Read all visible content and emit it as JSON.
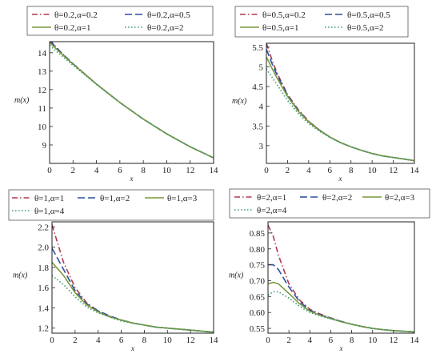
{
  "chart_data": [
    {
      "type": "line",
      "xlabel": "x",
      "ylabel": "m(x)",
      "xlim": [
        0,
        14
      ],
      "ylim": [
        8.0,
        14.6
      ],
      "xticks": [
        "0",
        "2",
        "4",
        "6",
        "8",
        "10",
        "12",
        "14"
      ],
      "yticks": [
        "9",
        "10",
        "11",
        "12",
        "13",
        "14"
      ],
      "ytick_values": [
        9,
        10,
        11,
        12,
        13,
        14
      ],
      "legend_placement": "top",
      "series": [
        {
          "name": "θ=0.2,α=0.2",
          "color": "#b03a4e",
          "dash": "dashdot",
          "x": [
            0,
            1,
            2,
            3,
            4,
            5,
            6,
            7,
            8,
            9,
            10,
            11,
            12,
            13,
            14
          ],
          "y": [
            14.7,
            14.0,
            13.4,
            12.85,
            12.3,
            11.8,
            11.3,
            10.85,
            10.4,
            10.0,
            9.6,
            9.25,
            8.9,
            8.6,
            8.3
          ]
        },
        {
          "name": "θ=0.2,α=0.5",
          "color": "#2d4f9e",
          "dash": "longdash",
          "x": [
            0,
            1,
            2,
            3,
            4,
            5,
            6,
            7,
            8,
            9,
            10,
            11,
            12,
            13,
            14
          ],
          "y": [
            14.65,
            14.0,
            13.4,
            12.85,
            12.3,
            11.8,
            11.3,
            10.85,
            10.4,
            10.0,
            9.6,
            9.25,
            8.9,
            8.6,
            8.3
          ]
        },
        {
          "name": "θ=0.2,α=1",
          "color": "#7a9a3a",
          "dash": "solid",
          "x": [
            0,
            1,
            2,
            3,
            4,
            5,
            6,
            7,
            8,
            9,
            10,
            11,
            12,
            13,
            14
          ],
          "y": [
            14.55,
            13.95,
            13.38,
            12.84,
            12.3,
            11.8,
            11.3,
            10.85,
            10.4,
            10.0,
            9.6,
            9.25,
            8.9,
            8.6,
            8.3
          ]
        },
        {
          "name": "θ=0.2,α=2",
          "color": "#3b9a6e",
          "dash": "dotted",
          "x": [
            0,
            1,
            2,
            3,
            4,
            5,
            6,
            7,
            8,
            9,
            10,
            11,
            12,
            13,
            14
          ],
          "y": [
            14.4,
            13.85,
            13.32,
            12.8,
            12.28,
            11.78,
            11.3,
            10.85,
            10.4,
            10.0,
            9.6,
            9.25,
            8.9,
            8.6,
            8.3
          ]
        }
      ]
    },
    {
      "type": "line",
      "xlabel": "x",
      "ylabel": "m(x)",
      "xlim": [
        0,
        14
      ],
      "ylim": [
        2.55,
        5.6
      ],
      "xticks": [
        "0",
        "2",
        "4",
        "6",
        "8",
        "10",
        "12",
        "14"
      ],
      "yticks": [
        "3",
        "3.5",
        "4",
        "4.5",
        "5",
        "5.5"
      ],
      "ytick_values": [
        3,
        3.5,
        4,
        4.5,
        5,
        5.5
      ],
      "legend_placement": "top",
      "series": [
        {
          "name": "θ=0.5,α=0.2",
          "color": "#b03a4e",
          "dash": "dashdot",
          "x": [
            0,
            0.5,
            1,
            2,
            3,
            4,
            5,
            6,
            7,
            8,
            9,
            10,
            11,
            12,
            13,
            14
          ],
          "y": [
            5.6,
            5.2,
            4.85,
            4.3,
            3.92,
            3.62,
            3.4,
            3.22,
            3.08,
            2.97,
            2.88,
            2.8,
            2.74,
            2.7,
            2.66,
            2.62
          ]
        },
        {
          "name": "θ=0.5,α=0.5",
          "color": "#2d4f9e",
          "dash": "longdash",
          "x": [
            0,
            0.5,
            1,
            2,
            3,
            4,
            5,
            6,
            7,
            8,
            9,
            10,
            11,
            12,
            13,
            14
          ],
          "y": [
            5.45,
            5.1,
            4.8,
            4.28,
            3.9,
            3.61,
            3.4,
            3.22,
            3.08,
            2.97,
            2.88,
            2.8,
            2.74,
            2.7,
            2.66,
            2.62
          ]
        },
        {
          "name": "θ=0.5,α=1",
          "color": "#7a9a3a",
          "dash": "solid",
          "x": [
            0,
            0.5,
            1,
            2,
            3,
            4,
            5,
            6,
            7,
            8,
            9,
            10,
            11,
            12,
            13,
            14
          ],
          "y": [
            5.25,
            4.98,
            4.72,
            4.25,
            3.88,
            3.6,
            3.39,
            3.22,
            3.08,
            2.97,
            2.88,
            2.8,
            2.74,
            2.7,
            2.66,
            2.62
          ]
        },
        {
          "name": "θ=0.5,α=2",
          "color": "#3b9a6e",
          "dash": "dotted",
          "x": [
            0,
            0.5,
            1,
            2,
            3,
            4,
            5,
            6,
            7,
            8,
            9,
            10,
            11,
            12,
            13,
            14
          ],
          "y": [
            4.95,
            4.75,
            4.55,
            4.15,
            3.82,
            3.56,
            3.37,
            3.21,
            3.07,
            2.97,
            2.88,
            2.8,
            2.74,
            2.7,
            2.66,
            2.62
          ]
        }
      ]
    },
    {
      "type": "line",
      "xlabel": "x",
      "ylabel": "m(x)",
      "xlim": [
        0,
        14
      ],
      "ylim": [
        1.15,
        2.25
      ],
      "xticks": [
        "0",
        "2",
        "4",
        "6",
        "8",
        "10",
        "12",
        "14"
      ],
      "yticks": [
        "1.2",
        "1.4",
        "1.6",
        "1.8",
        "2.0",
        "2.2"
      ],
      "ytick_values": [
        1.2,
        1.4,
        1.6,
        1.8,
        2.0,
        2.2
      ],
      "legend_placement": "top",
      "series": [
        {
          "name": "θ=1,α=1",
          "color": "#b03a4e",
          "dash": "dashdot",
          "x": [
            0,
            1,
            2,
            3,
            4,
            5,
            6,
            7,
            8,
            9,
            10,
            11,
            12,
            13,
            14
          ],
          "y": [
            2.22,
            1.85,
            1.6,
            1.45,
            1.37,
            1.32,
            1.28,
            1.25,
            1.23,
            1.21,
            1.2,
            1.19,
            1.18,
            1.17,
            1.16
          ]
        },
        {
          "name": "θ=1,α=2",
          "color": "#2d4f9e",
          "dash": "longdash",
          "x": [
            0,
            1,
            2,
            3,
            4,
            5,
            6,
            7,
            8,
            9,
            10,
            11,
            12,
            13,
            14
          ],
          "y": [
            1.99,
            1.78,
            1.57,
            1.44,
            1.37,
            1.32,
            1.28,
            1.25,
            1.23,
            1.21,
            1.2,
            1.19,
            1.18,
            1.17,
            1.16
          ]
        },
        {
          "name": "θ=1,α=3",
          "color": "#7a9a3a",
          "dash": "solid",
          "x": [
            0,
            1,
            2,
            3,
            4,
            5,
            6,
            7,
            8,
            9,
            10,
            11,
            12,
            13,
            14
          ],
          "y": [
            1.85,
            1.72,
            1.55,
            1.43,
            1.36,
            1.31,
            1.28,
            1.25,
            1.23,
            1.21,
            1.2,
            1.19,
            1.18,
            1.17,
            1.16
          ]
        },
        {
          "name": "θ=1,α=4",
          "color": "#3b9a6e",
          "dash": "dotted",
          "x": [
            0,
            1,
            2,
            3,
            4,
            5,
            6,
            7,
            8,
            9,
            10,
            11,
            12,
            13,
            14
          ],
          "y": [
            1.72,
            1.63,
            1.51,
            1.41,
            1.35,
            1.31,
            1.27,
            1.25,
            1.23,
            1.21,
            1.2,
            1.19,
            1.18,
            1.17,
            1.16
          ]
        }
      ]
    },
    {
      "type": "line",
      "xlabel": "x",
      "ylabel": "m(x)",
      "xlim": [
        0,
        14
      ],
      "ylim": [
        0.535,
        0.885
      ],
      "xticks": [
        "0",
        "2",
        "4",
        "6",
        "8",
        "10",
        "12",
        "14"
      ],
      "yticks": [
        "0.55",
        "0.60",
        "0.65",
        "0.70",
        "0.75",
        "0.80",
        "0.85"
      ],
      "ytick_values": [
        0.55,
        0.6,
        0.65,
        0.7,
        0.75,
        0.8,
        0.85
      ],
      "legend_placement": "top",
      "series": [
        {
          "name": "θ=2,α=1",
          "color": "#b03a4e",
          "dash": "dashdot",
          "x": [
            0,
            0.5,
            1,
            2,
            3,
            4,
            5,
            6,
            7,
            8,
            9,
            10,
            11,
            12,
            13,
            14
          ],
          "y": [
            0.875,
            0.84,
            0.78,
            0.69,
            0.64,
            0.61,
            0.595,
            0.583,
            0.572,
            0.563,
            0.556,
            0.55,
            0.546,
            0.543,
            0.541,
            0.539
          ]
        },
        {
          "name": "θ=2,α=2",
          "color": "#2d4f9e",
          "dash": "longdash",
          "x": [
            0,
            0.5,
            1,
            2,
            3,
            4,
            5,
            6,
            7,
            8,
            9,
            10,
            11,
            12,
            13,
            14
          ],
          "y": [
            0.75,
            0.75,
            0.735,
            0.68,
            0.635,
            0.607,
            0.593,
            0.582,
            0.572,
            0.563,
            0.556,
            0.55,
            0.546,
            0.543,
            0.541,
            0.539
          ]
        },
        {
          "name": "θ=2,α=3",
          "color": "#7a9a3a",
          "dash": "solid",
          "x": [
            0,
            0.5,
            1,
            2,
            3,
            4,
            5,
            6,
            7,
            8,
            9,
            10,
            11,
            12,
            13,
            14
          ],
          "y": [
            0.69,
            0.695,
            0.69,
            0.66,
            0.628,
            0.604,
            0.591,
            0.581,
            0.571,
            0.563,
            0.556,
            0.55,
            0.546,
            0.543,
            0.541,
            0.539
          ]
        },
        {
          "name": "θ=2,α=4",
          "color": "#3b9a6e",
          "dash": "dotted",
          "x": [
            0,
            0.5,
            1,
            2,
            3,
            4,
            5,
            6,
            7,
            8,
            9,
            10,
            11,
            12,
            13,
            14
          ],
          "y": [
            0.655,
            0.665,
            0.665,
            0.645,
            0.62,
            0.6,
            0.589,
            0.58,
            0.571,
            0.563,
            0.556,
            0.55,
            0.546,
            0.543,
            0.541,
            0.539
          ]
        }
      ]
    }
  ]
}
